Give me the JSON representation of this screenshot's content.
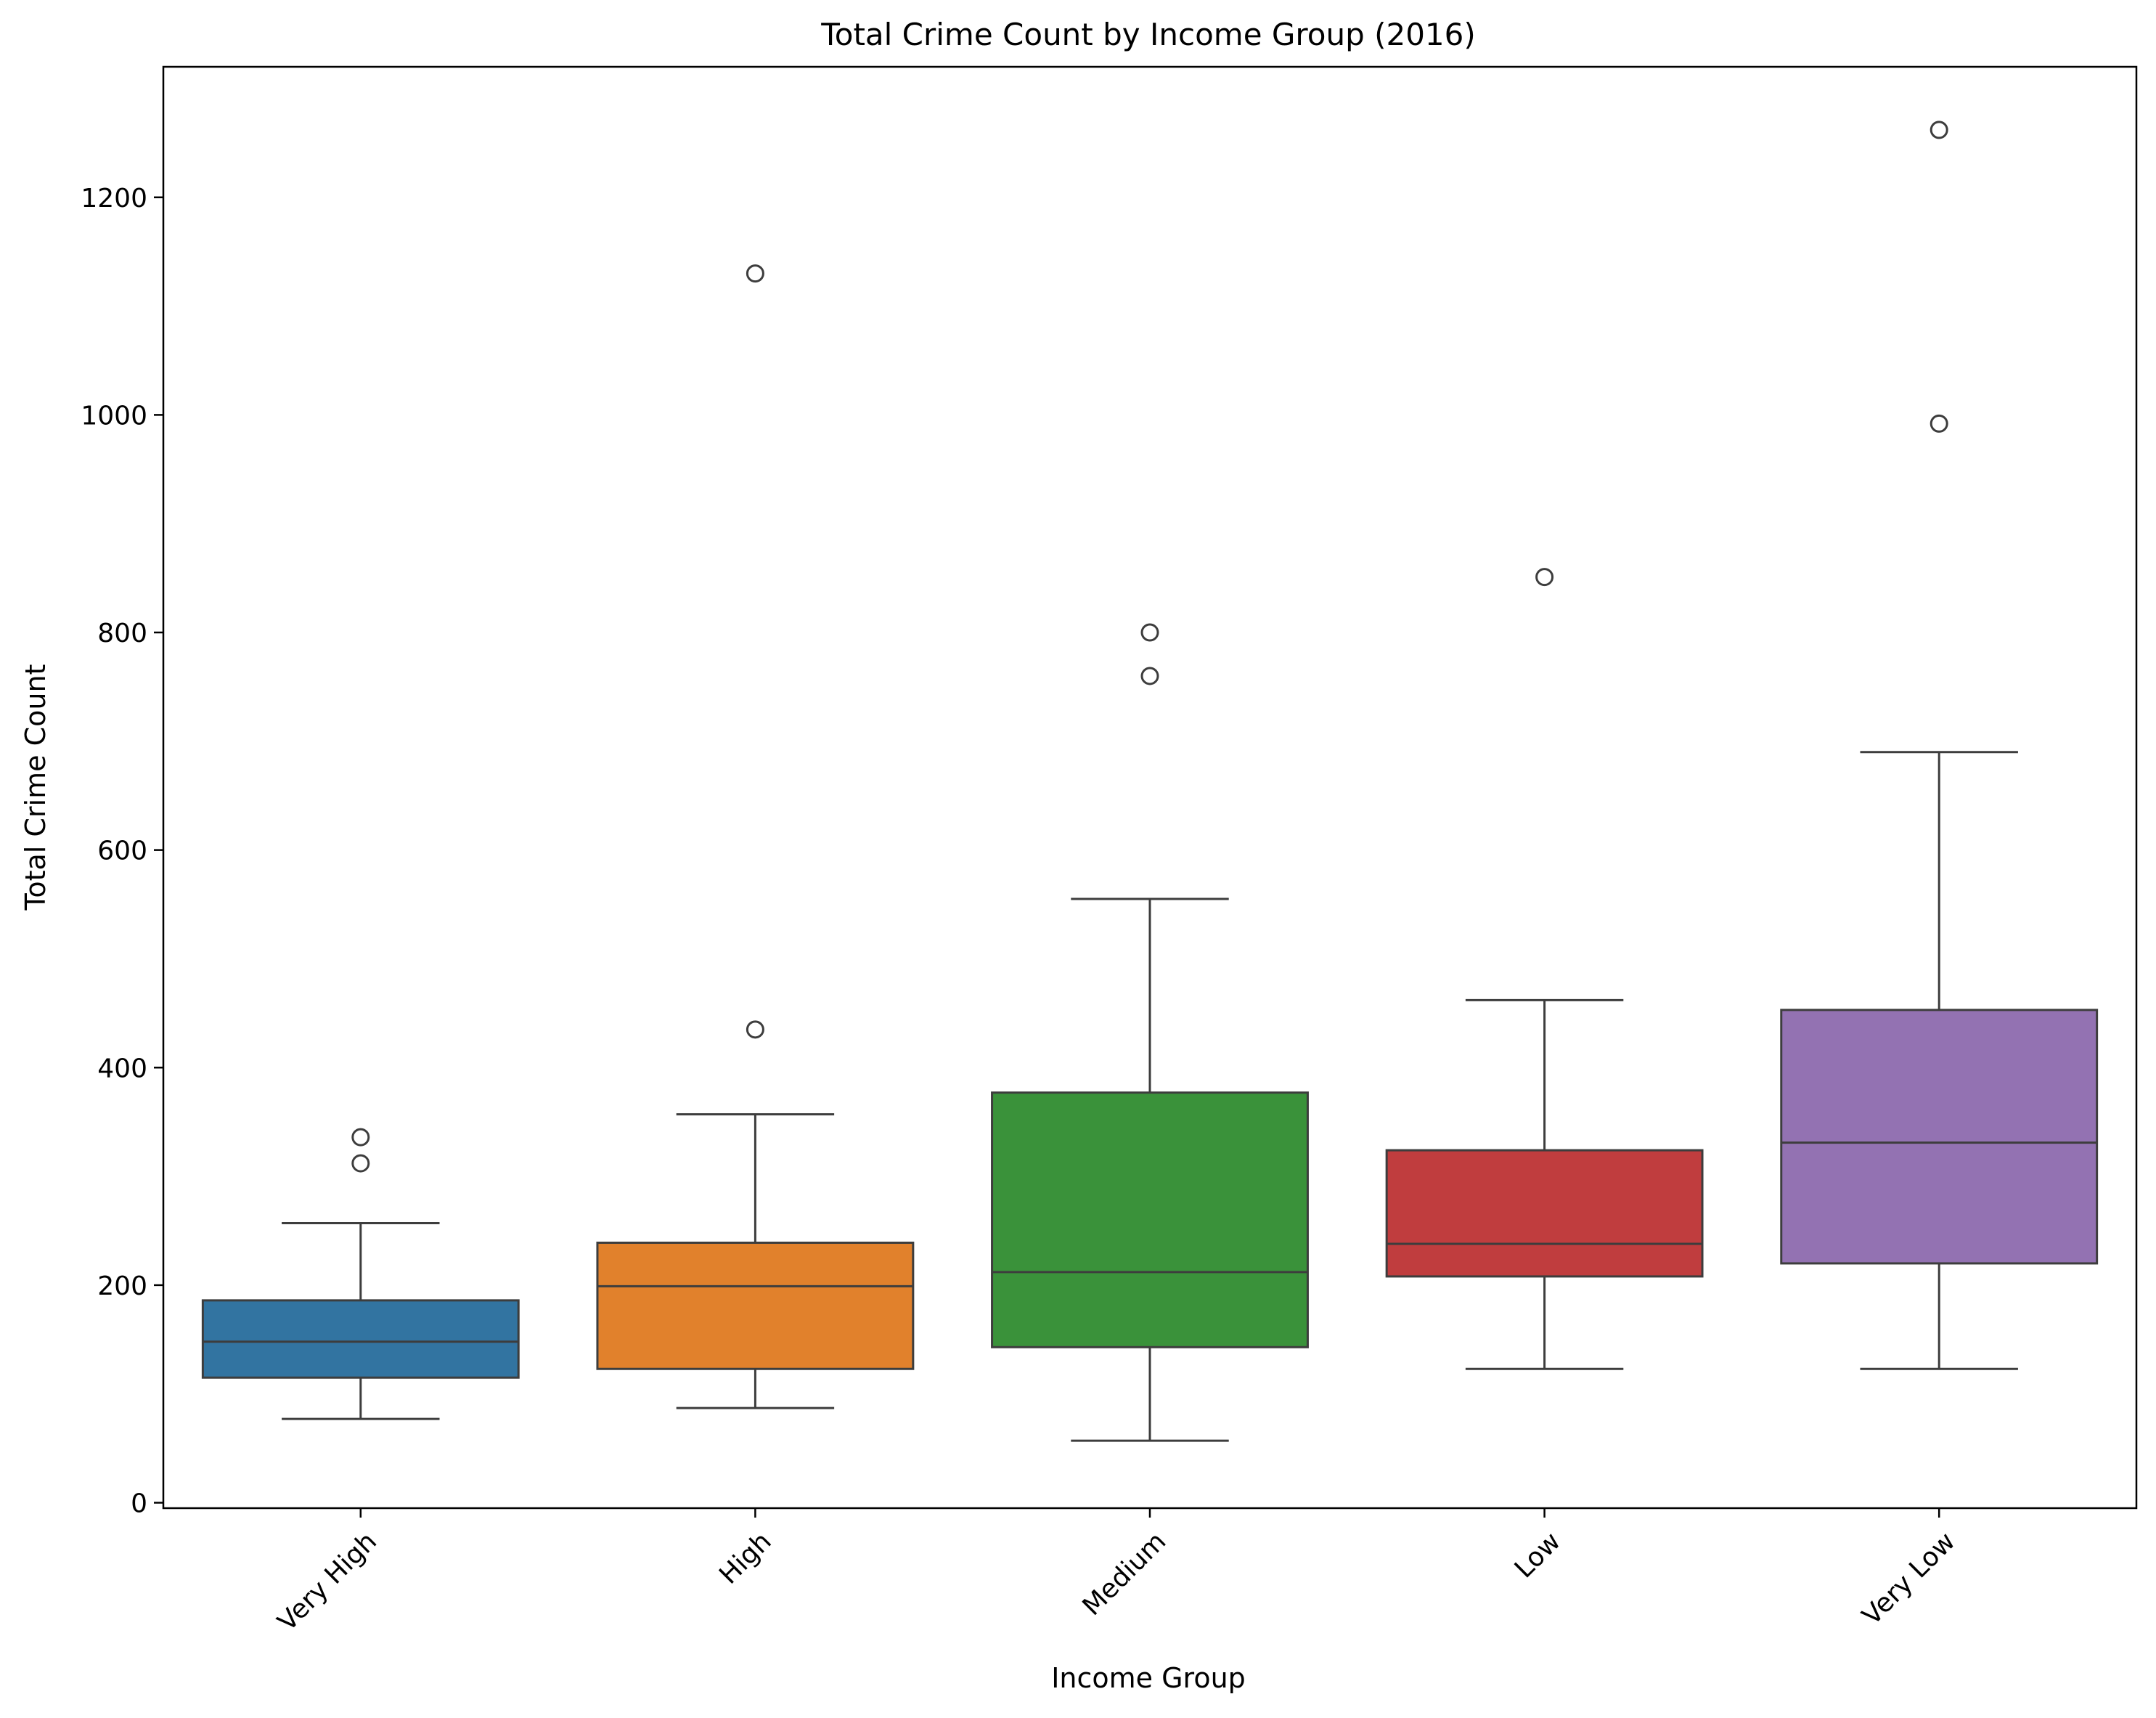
{
  "chart_data": {
    "type": "boxplot",
    "title": "Total Crime Count by Income Group (2016)",
    "xlabel": "Income Group",
    "ylabel": "Total Crime Count",
    "ylim": [
      -5,
      1320
    ],
    "yticks": [
      0,
      200,
      400,
      600,
      800,
      1000,
      1200
    ],
    "grid": false,
    "legend": "none",
    "categories": [
      "Very High",
      "High",
      "Medium",
      "Low",
      "Very Low"
    ],
    "colors": [
      "#3274a1",
      "#e1812c",
      "#3a923a",
      "#c03d3e",
      "#9372b2"
    ],
    "edge_color": "#3d3d3d",
    "boxes": [
      {
        "whisker_low": 77,
        "q1": 115,
        "median": 148,
        "q3": 186,
        "whisker_high": 257,
        "outliers": [
          312,
          336
        ]
      },
      {
        "whisker_low": 87,
        "q1": 123,
        "median": 199,
        "q3": 239,
        "whisker_high": 357,
        "outliers": [
          435,
          1130
        ]
      },
      {
        "whisker_low": 57,
        "q1": 143,
        "median": 212,
        "q3": 377,
        "whisker_high": 555,
        "outliers": [
          760,
          800
        ]
      },
      {
        "whisker_low": 123,
        "q1": 208,
        "median": 238,
        "q3": 324,
        "whisker_high": 462,
        "outliers": [
          851
        ]
      },
      {
        "whisker_low": 123,
        "q1": 220,
        "median": 331,
        "q3": 453,
        "whisker_high": 690,
        "outliers": [
          992,
          1262
        ]
      }
    ]
  }
}
